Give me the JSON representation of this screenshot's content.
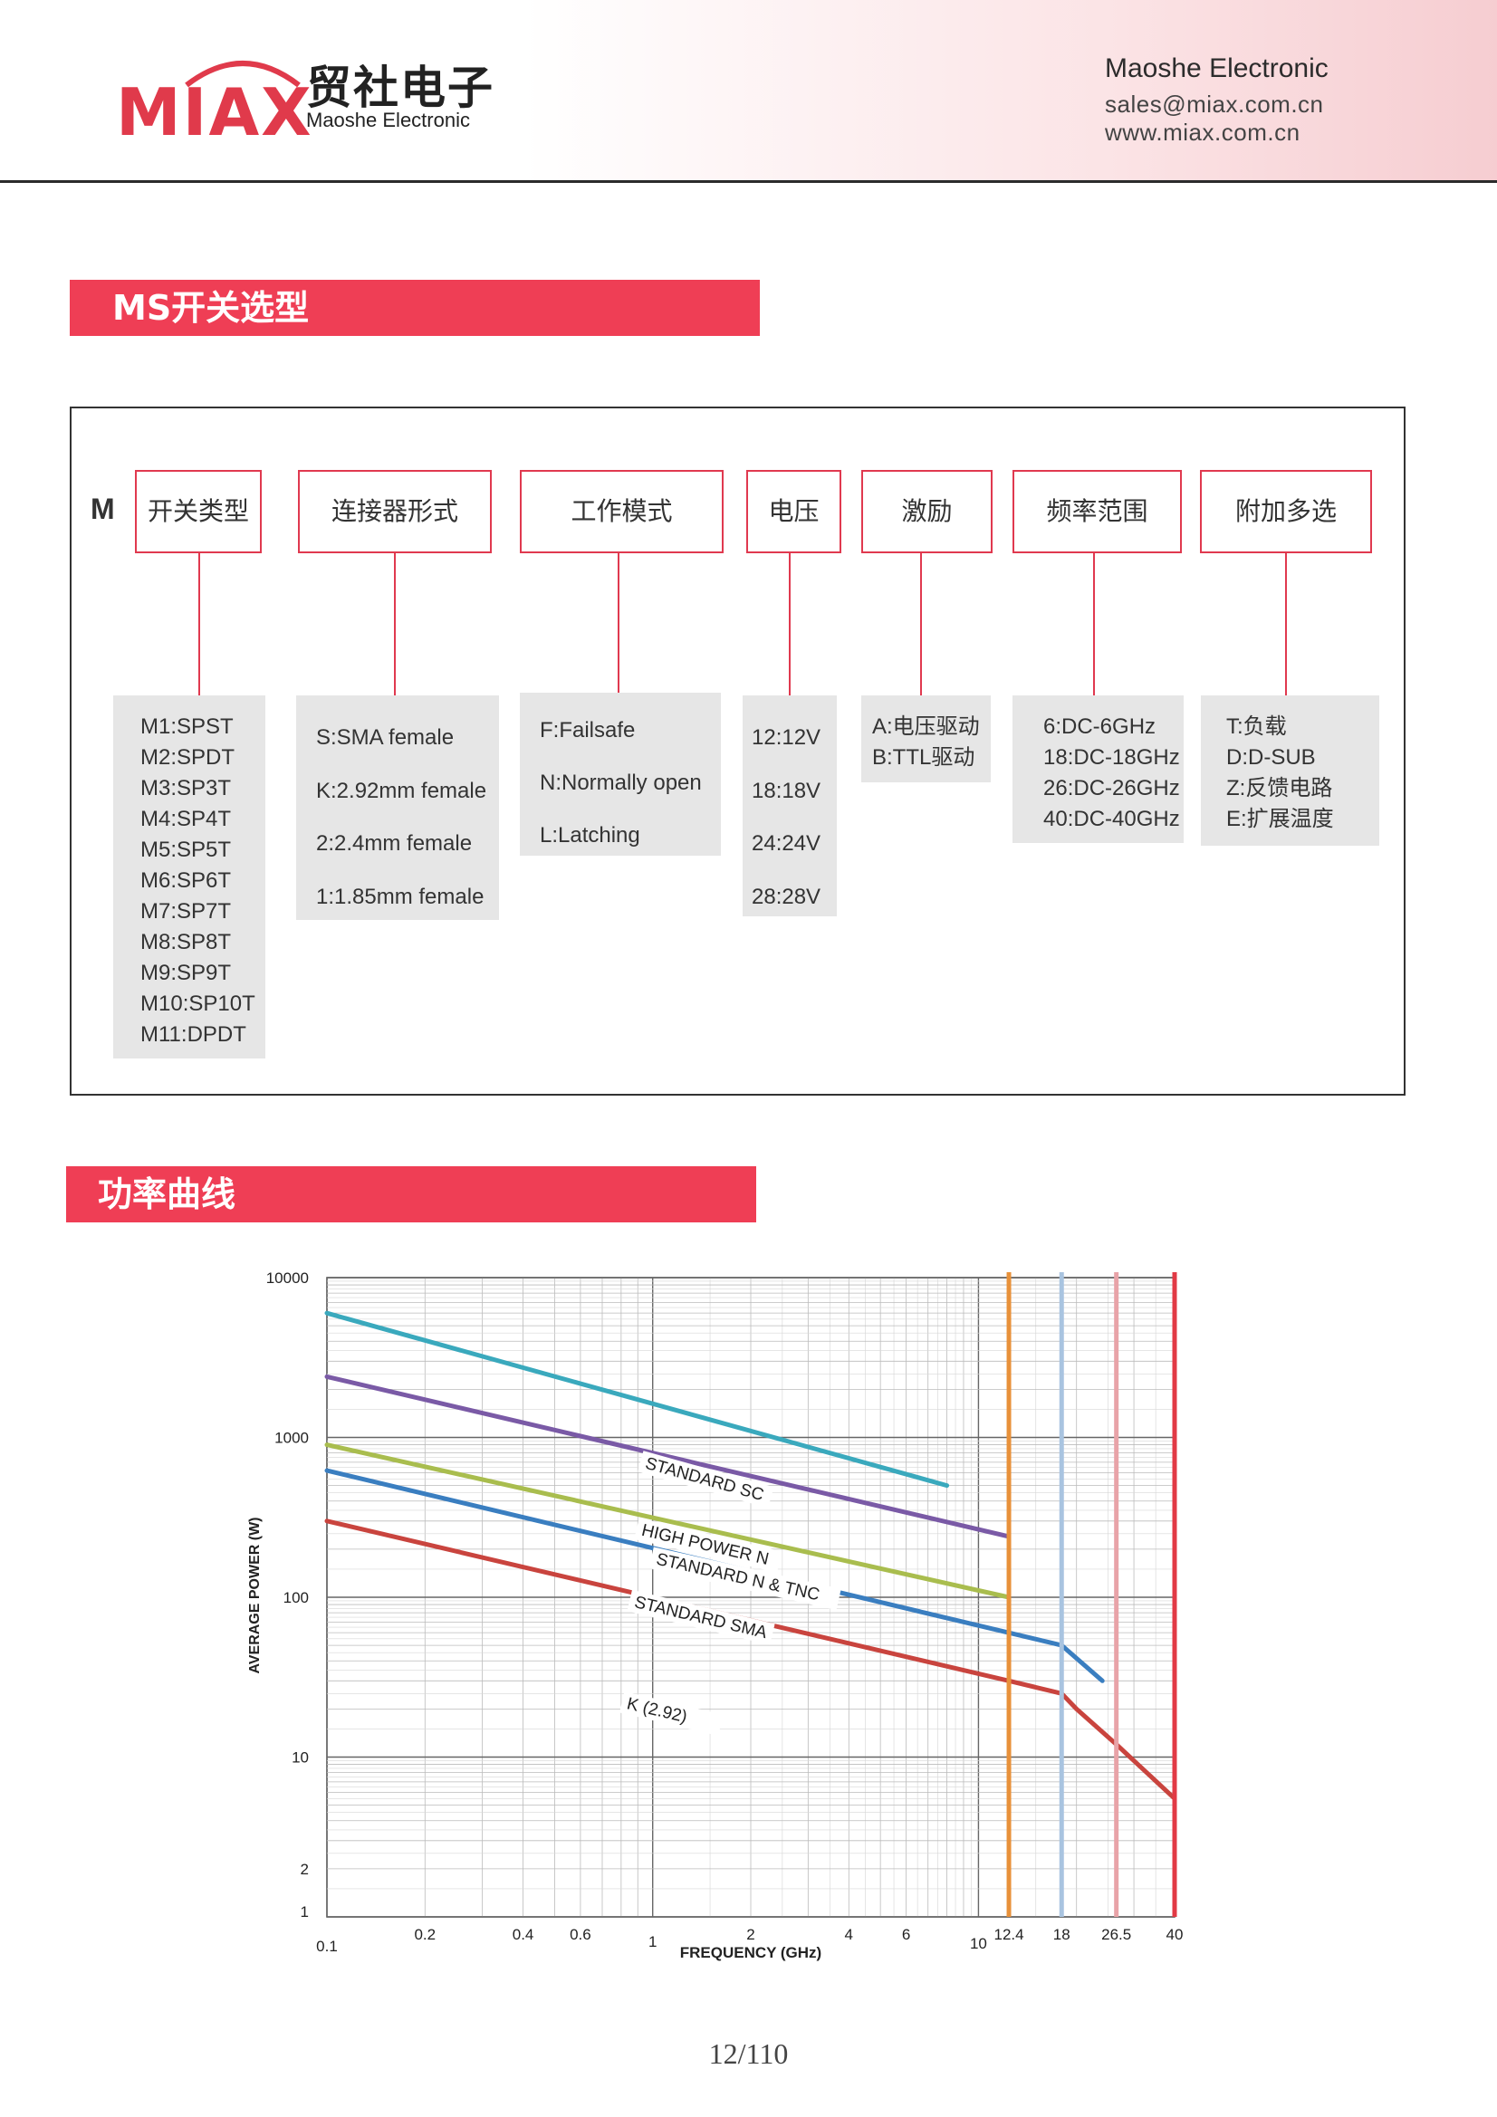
{
  "header": {
    "logo_text": "MIAX",
    "logo_cn": "贸社电子",
    "logo_en": "Maoshe Electronic",
    "company": "Maoshe Electronic",
    "email": "sales@miax.com.cn",
    "website": "www.miax.com.cn"
  },
  "section1": {
    "title": "MS开关选型"
  },
  "selection": {
    "prefix": "M",
    "categories": [
      {
        "label": "开关类型",
        "options": [
          "M1:SPST",
          "M2:SPDT",
          "M3:SP3T",
          "M4:SP4T",
          "M5:SP5T",
          "M6:SP6T",
          "M7:SP7T",
          "M8:SP8T",
          "M9:SP9T",
          "M10:SP10T",
          "M11:DPDT"
        ]
      },
      {
        "label": "连接器形式",
        "options": [
          "S:SMA female",
          "K:2.92mm female",
          "2:2.4mm female",
          "1:1.85mm female"
        ]
      },
      {
        "label": "工作模式",
        "options": [
          "F:Failsafe",
          "N:Normally open",
          "L:Latching"
        ]
      },
      {
        "label": "电压",
        "options": [
          "12:12V",
          "18:18V",
          "24:24V",
          "28:28V"
        ]
      },
      {
        "label": "激励",
        "options": [
          "A:电压驱动",
          "B:TTL驱动"
        ]
      },
      {
        "label": "频率范围",
        "options": [
          "6:DC-6GHz",
          "18:DC-18GHz",
          "26:DC-26GHz",
          "40:DC-40GHz"
        ]
      },
      {
        "label": "附加多选",
        "options": [
          "T:负载",
          "D:D-SUB",
          "Z:反馈电路",
          "E:扩展温度"
        ]
      }
    ]
  },
  "section2": {
    "title": "功率曲线"
  },
  "chart_data": {
    "type": "line",
    "title": "",
    "xlabel": "FREQUENCY (GHz)",
    "ylabel": "AVERAGE POWER (W)",
    "x_scale": "log",
    "y_scale": "log",
    "xlim": [
      0.1,
      40
    ],
    "ylim": [
      1,
      10000
    ],
    "grid": true,
    "x_ticks": [
      {
        "v": 0.1,
        "label": "0.1"
      },
      {
        "v": 0.2,
        "label": "0.2"
      },
      {
        "v": 0.4,
        "label": "0.4"
      },
      {
        "v": 0.6,
        "label": "0.6"
      },
      {
        "v": 1,
        "label": "1"
      },
      {
        "v": 2,
        "label": "2"
      },
      {
        "v": 4,
        "label": "4"
      },
      {
        "v": 6,
        "label": "6"
      },
      {
        "v": 10,
        "label": "10"
      },
      {
        "v": 12.4,
        "label": "12.4"
      },
      {
        "v": 18,
        "label": "18"
      },
      {
        "v": 26.5,
        "label": "26.5"
      },
      {
        "v": 40,
        "label": "40"
      }
    ],
    "y_ticks": [
      {
        "v": 1,
        "label": "1"
      },
      {
        "v": 2,
        "label": "2"
      },
      {
        "v": 10,
        "label": "10"
      },
      {
        "v": 100,
        "label": "100"
      },
      {
        "v": 1000,
        "label": "1000"
      },
      {
        "v": 10000,
        "label": "10000"
      }
    ],
    "cutoff_lines": [
      {
        "x": 12.4,
        "color": "#e8913a"
      },
      {
        "x": 18,
        "color": "#a9c4e0"
      },
      {
        "x": 26.5,
        "color": "#e8a3a8"
      },
      {
        "x": 40,
        "color": "#e23a45"
      }
    ],
    "series": [
      {
        "name": "STANDARD SC",
        "color": "#3aa9bd",
        "points": [
          [
            0.1,
            6000
          ],
          [
            8,
            500
          ]
        ]
      },
      {
        "name": "HIGH POWER N",
        "color": "#7a5aa6",
        "points": [
          [
            0.1,
            2400
          ],
          [
            12.4,
            240
          ]
        ]
      },
      {
        "name": "STANDARD N & TNC",
        "color": "#a9bd4e",
        "points": [
          [
            0.1,
            900
          ],
          [
            12.4,
            100
          ]
        ]
      },
      {
        "name": "STANDARD SMA",
        "color": "#3a7ec0",
        "points": [
          [
            0.1,
            620
          ],
          [
            12.4,
            60
          ],
          [
            18,
            50
          ],
          [
            24,
            30
          ]
        ]
      },
      {
        "name": "K (2.92)",
        "color": "#c9443e",
        "points": [
          [
            0.1,
            300
          ],
          [
            12.4,
            30
          ],
          [
            18,
            25
          ],
          [
            20,
            20
          ],
          [
            26.5,
            12
          ],
          [
            40,
            5.5
          ]
        ]
      }
    ],
    "annotations": [
      "STANDARD SC",
      "HIGH POWER N",
      "STANDARD N & TNC",
      "STANDARD SMA",
      "K (2.92)"
    ]
  },
  "footer": {
    "page": "12/110"
  }
}
